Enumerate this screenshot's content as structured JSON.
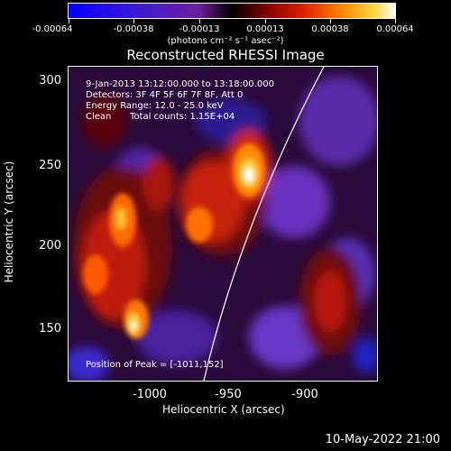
{
  "colorbar": {
    "tick_labels": [
      "-0.00064",
      "-0.00038",
      "-0.00013",
      "0.00013",
      "0.00038",
      "0.00064"
    ],
    "units": "(photons cm⁻² s⁻¹ asec⁻²)"
  },
  "title": "Reconstructed RHESSI Image",
  "info": {
    "time_range": "9-Jan-2013 13:12:00.000 to 13:18:00.000",
    "detectors": "Detectors: 3F 4F 5F 6F 7F 8F, Att 0",
    "energy": "Energy Range: 12.0 - 25.0 keV",
    "method": "Clean",
    "counts": "Total counts: 1.15E+04",
    "peak": "Position of Peak = [-1011,152]"
  },
  "axes": {
    "xlabel": "Heliocentric X (arcsec)",
    "ylabel": "Heliocentric Y (arcsec)",
    "x_ticks": [
      "-1000",
      "-950",
      "-900"
    ],
    "y_ticks": [
      "300",
      "250",
      "200",
      "150"
    ]
  },
  "timestamp": "10-May-2022 21:00",
  "colors": {
    "background": "#000000",
    "text": "#ffffff"
  }
}
